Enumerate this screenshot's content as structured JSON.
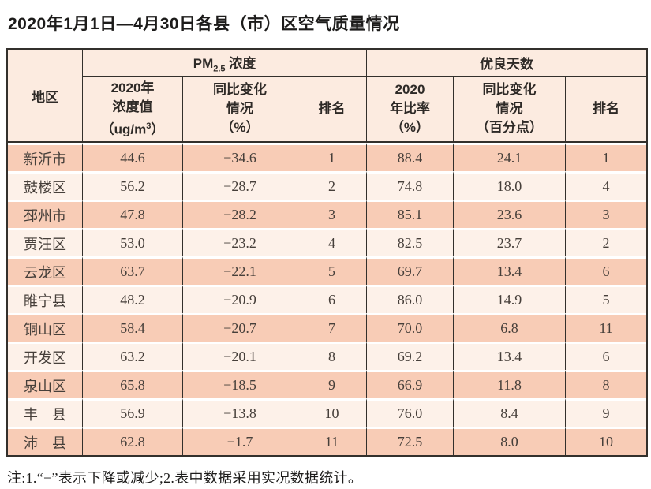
{
  "chart_data": {
    "type": "table",
    "title": "2020年1月1日—4月30日各县（市）区空气质量情况",
    "note": "注:1.“−”表示下降或减少;2.表中数据采用实况数据统计。",
    "header": {
      "region": "地区",
      "group_pm": {
        "prefix": "PM",
        "sub": "2.5",
        "rest": " 浓度"
      },
      "group_good": "优良天数",
      "sub_pm_value": {
        "l1": "2020年",
        "l2": "浓度值",
        "l3a": "（ug/m",
        "sup": "3",
        "l3b": "）"
      },
      "sub_pm_change": {
        "l1": "同比变化",
        "l2": "情况",
        "l3": "（%）"
      },
      "sub_pm_rank": "排名",
      "sub_good_ratio": {
        "l1": "2020",
        "l2": "年比率",
        "l3": "（%）"
      },
      "sub_good_change": {
        "l1": "同比变化",
        "l2": "情况",
        "l3": "（百分点）"
      },
      "sub_good_rank": "排名"
    },
    "column_keys": [
      "region",
      "pm_value",
      "pm_change",
      "pm_rank",
      "good_ratio",
      "good_change",
      "good_rank"
    ],
    "rows": [
      {
        "region": "新沂市",
        "pm_value": "44.6",
        "pm_change": "−34.6",
        "pm_rank": "1",
        "good_ratio": "88.4",
        "good_change": "24.1",
        "good_rank": "1"
      },
      {
        "region": "鼓楼区",
        "pm_value": "56.2",
        "pm_change": "−28.7",
        "pm_rank": "2",
        "good_ratio": "74.8",
        "good_change": "18.0",
        "good_rank": "4"
      },
      {
        "region": "邳州市",
        "pm_value": "47.8",
        "pm_change": "−28.2",
        "pm_rank": "3",
        "good_ratio": "85.1",
        "good_change": "23.6",
        "good_rank": "3"
      },
      {
        "region": "贾汪区",
        "pm_value": "53.0",
        "pm_change": "−23.2",
        "pm_rank": "4",
        "good_ratio": "82.5",
        "good_change": "23.7",
        "good_rank": "2"
      },
      {
        "region": "云龙区",
        "pm_value": "63.7",
        "pm_change": "−22.1",
        "pm_rank": "5",
        "good_ratio": "69.7",
        "good_change": "13.4",
        "good_rank": "6"
      },
      {
        "region": "睢宁县",
        "pm_value": "48.2",
        "pm_change": "−20.9",
        "pm_rank": "6",
        "good_ratio": "86.0",
        "good_change": "14.9",
        "good_rank": "5"
      },
      {
        "region": "铜山区",
        "pm_value": "58.4",
        "pm_change": "−20.7",
        "pm_rank": "7",
        "good_ratio": "70.0",
        "good_change": "6.8",
        "good_rank": "11"
      },
      {
        "region": "开发区",
        "pm_value": "63.2",
        "pm_change": "−20.1",
        "pm_rank": "8",
        "good_ratio": "69.2",
        "good_change": "13.4",
        "good_rank": "6"
      },
      {
        "region": "泉山区",
        "pm_value": "65.8",
        "pm_change": "−18.5",
        "pm_rank": "9",
        "good_ratio": "66.9",
        "good_change": "11.8",
        "good_rank": "8"
      },
      {
        "region": "丰　县",
        "pm_value": "56.9",
        "pm_change": "−13.8",
        "pm_rank": "10",
        "good_ratio": "76.0",
        "good_change": "8.4",
        "good_rank": "9"
      },
      {
        "region": "沛　县",
        "pm_value": "62.8",
        "pm_change": "−1.7",
        "pm_rank": "11",
        "good_ratio": "72.5",
        "good_change": "8.0",
        "good_rank": "10"
      }
    ],
    "colors": {
      "border": "#33302c",
      "header_bg": "#fcebe0",
      "row_salmon": "#f8ccb6",
      "row_light": "#fdf1e9"
    }
  }
}
